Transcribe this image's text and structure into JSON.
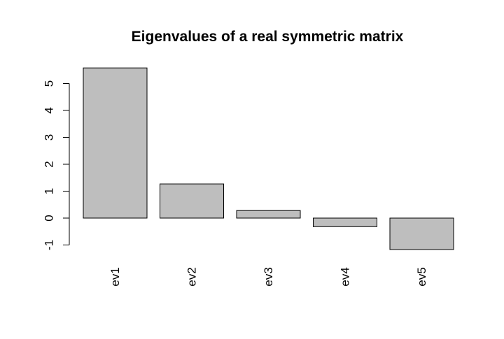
{
  "chart_data": {
    "type": "bar",
    "title": "Eigenvalues of a real symmetric matrix",
    "xlabel": "",
    "ylabel": "",
    "categories": [
      "ev1",
      "ev2",
      "ev3",
      "ev4",
      "ev5"
    ],
    "values": [
      5.58,
      1.27,
      0.28,
      -0.32,
      -1.17
    ],
    "ylim": [
      -1,
      5
    ],
    "yticks": [
      -1,
      0,
      1,
      2,
      3,
      4,
      5
    ],
    "bar_color": "#bebebe",
    "grid": false,
    "legend": "none"
  }
}
